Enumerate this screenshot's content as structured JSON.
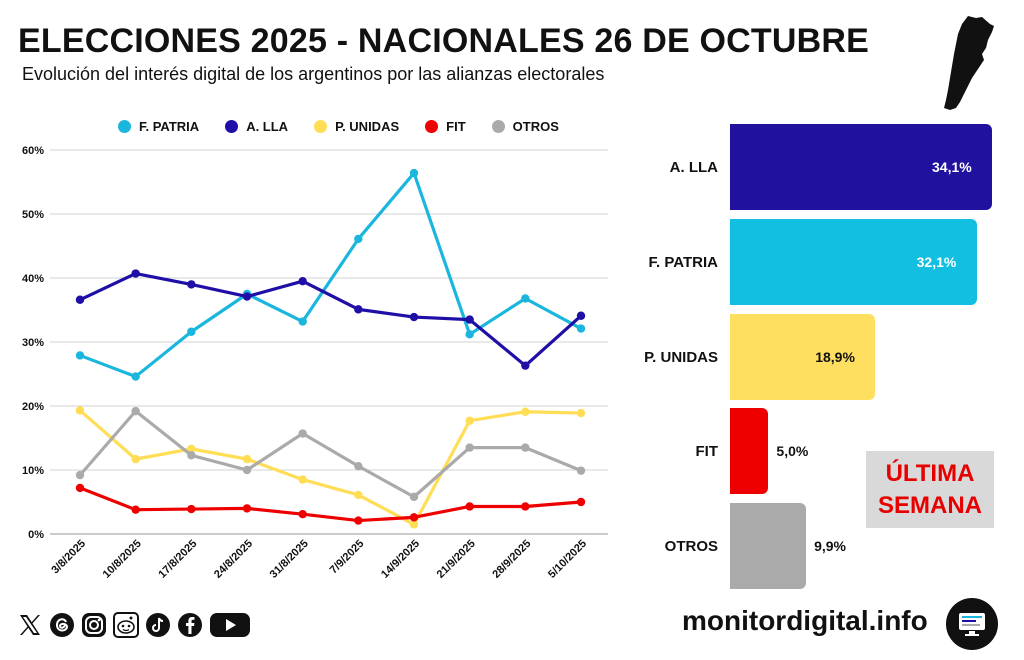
{
  "header": {
    "title": "ELECCIONES 2025 - NACIONALES 26 DE OCTUBRE",
    "subtitle": "Evolución del interés digital de los argentinos por las alianzas electorales"
  },
  "chart_data": [
    {
      "type": "line",
      "title": "Evolución del interés digital",
      "x": [
        "3/8/2025",
        "10/8/2025",
        "17/8/2025",
        "24/8/2025",
        "31/8/2025",
        "7/9/2025",
        "14/9/2025",
        "21/9/2025",
        "28/9/2025",
        "5/10/2025"
      ],
      "y_ticks": [
        "0%",
        "10%",
        "20%",
        "30%",
        "40%",
        "50%",
        "60%"
      ],
      "ylim": [
        0,
        60
      ],
      "grid": true,
      "legend_position": "top",
      "series": [
        {
          "name": "F. PATRIA",
          "color": "#1ab6dd",
          "values": [
            27.9,
            24.6,
            31.6,
            37.5,
            33.2,
            46.1,
            56.4,
            31.2,
            36.8,
            32.1
          ]
        },
        {
          "name": "A. LLA",
          "color": "#1f0fa6",
          "values": [
            36.6,
            40.7,
            39.0,
            37.1,
            39.5,
            35.1,
            33.9,
            33.5,
            26.3,
            34.1
          ]
        },
        {
          "name": "P. UNIDAS",
          "color": "#ffdd55",
          "values": [
            19.3,
            11.7,
            13.3,
            11.7,
            8.5,
            6.1,
            1.5,
            17.7,
            19.1,
            18.9
          ]
        },
        {
          "name": "FIT",
          "color": "#ee0000",
          "values": [
            7.2,
            3.8,
            3.9,
            4.0,
            3.1,
            2.1,
            2.6,
            4.3,
            4.3,
            5.0
          ]
        },
        {
          "name": "OTROS",
          "color": "#aaaaaa",
          "values": [
            9.2,
            19.2,
            12.3,
            10.0,
            15.7,
            10.6,
            5.8,
            13.5,
            13.5,
            9.9
          ]
        }
      ]
    },
    {
      "type": "bar",
      "orientation": "horizontal",
      "categories": [
        "A. LLA",
        "F. PATRIA",
        "P. UNIDAS",
        "FIT",
        "OTROS"
      ],
      "values": [
        34.1,
        32.1,
        18.9,
        5.0,
        9.9
      ],
      "value_labels": [
        "34,1%",
        "32,1%",
        "18,9%",
        "5,0%",
        "9,9%"
      ],
      "colors": [
        "#21119f",
        "#12bfe0",
        "#ffdf5f",
        "#ee0000",
        "#aaaaaa"
      ]
    }
  ],
  "badge": {
    "line1": "ÚLTIMA",
    "line2": "SEMANA"
  },
  "footer": {
    "site": "monitordigital.info",
    "social_icons": [
      "x-icon",
      "threads-icon",
      "instagram-icon",
      "reddit-icon",
      "tiktok-icon",
      "facebook-icon",
      "youtube-icon"
    ]
  }
}
